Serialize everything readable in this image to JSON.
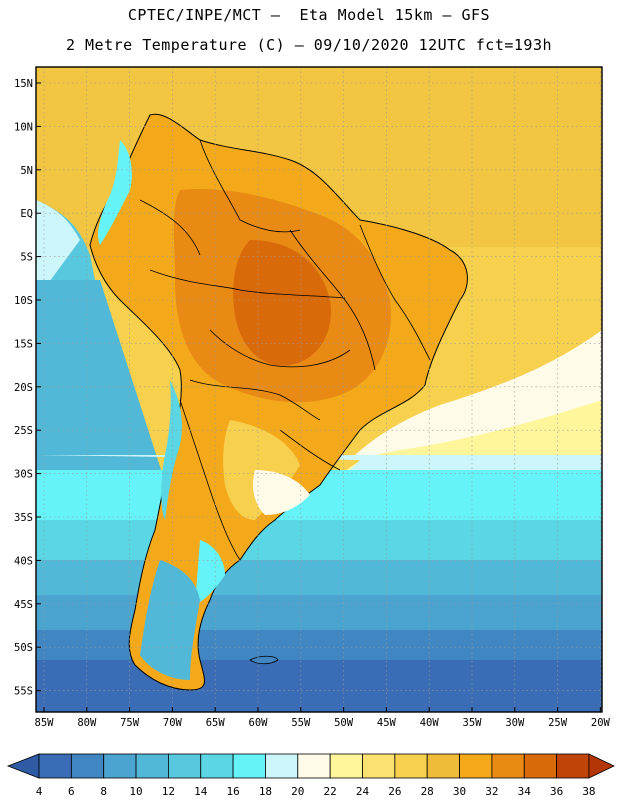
{
  "header": {
    "line1": "CPTEC/INPE/MCT —  Eta Model 15km — GFS",
    "line2": "2 Metre Temperature (C) — 09/10/2020 12UTC fct=193h"
  },
  "axes": {
    "lat_ticks": [
      "15N",
      "10N",
      "5N",
      "EQ",
      "5S",
      "10S",
      "15S",
      "20S",
      "25S",
      "30S",
      "35S",
      "40S",
      "45S",
      "50S",
      "55S"
    ],
    "lon_ticks": [
      "85W",
      "80W",
      "75W",
      "70W",
      "65W",
      "60W",
      "55W",
      "50W",
      "45W",
      "40W",
      "35W",
      "30W",
      "25W",
      "20W"
    ]
  },
  "colorbar": {
    "labels": [
      "4",
      "6",
      "8",
      "10",
      "12",
      "14",
      "16",
      "18",
      "20",
      "22",
      "24",
      "26",
      "28",
      "30",
      "32",
      "34",
      "36",
      "38"
    ],
    "colors": [
      "#3a6db5",
      "#3f86c2",
      "#4ba3cf",
      "#52b8d8",
      "#57c8dd",
      "#5ad6e4",
      "#66f3f8",
      "#cdf6fb",
      "#fffbe9",
      "#fff59a",
      "#fbe170",
      "#f7d04e",
      "#efbc3a",
      "#f4a91b",
      "#e88a14",
      "#d86a0a",
      "#c04407"
    ],
    "low_color": "#2f5ba4",
    "high_color": "#b23606"
  },
  "colors": {
    "land_outline": "#000000",
    "grid": "#9a9a9a"
  }
}
